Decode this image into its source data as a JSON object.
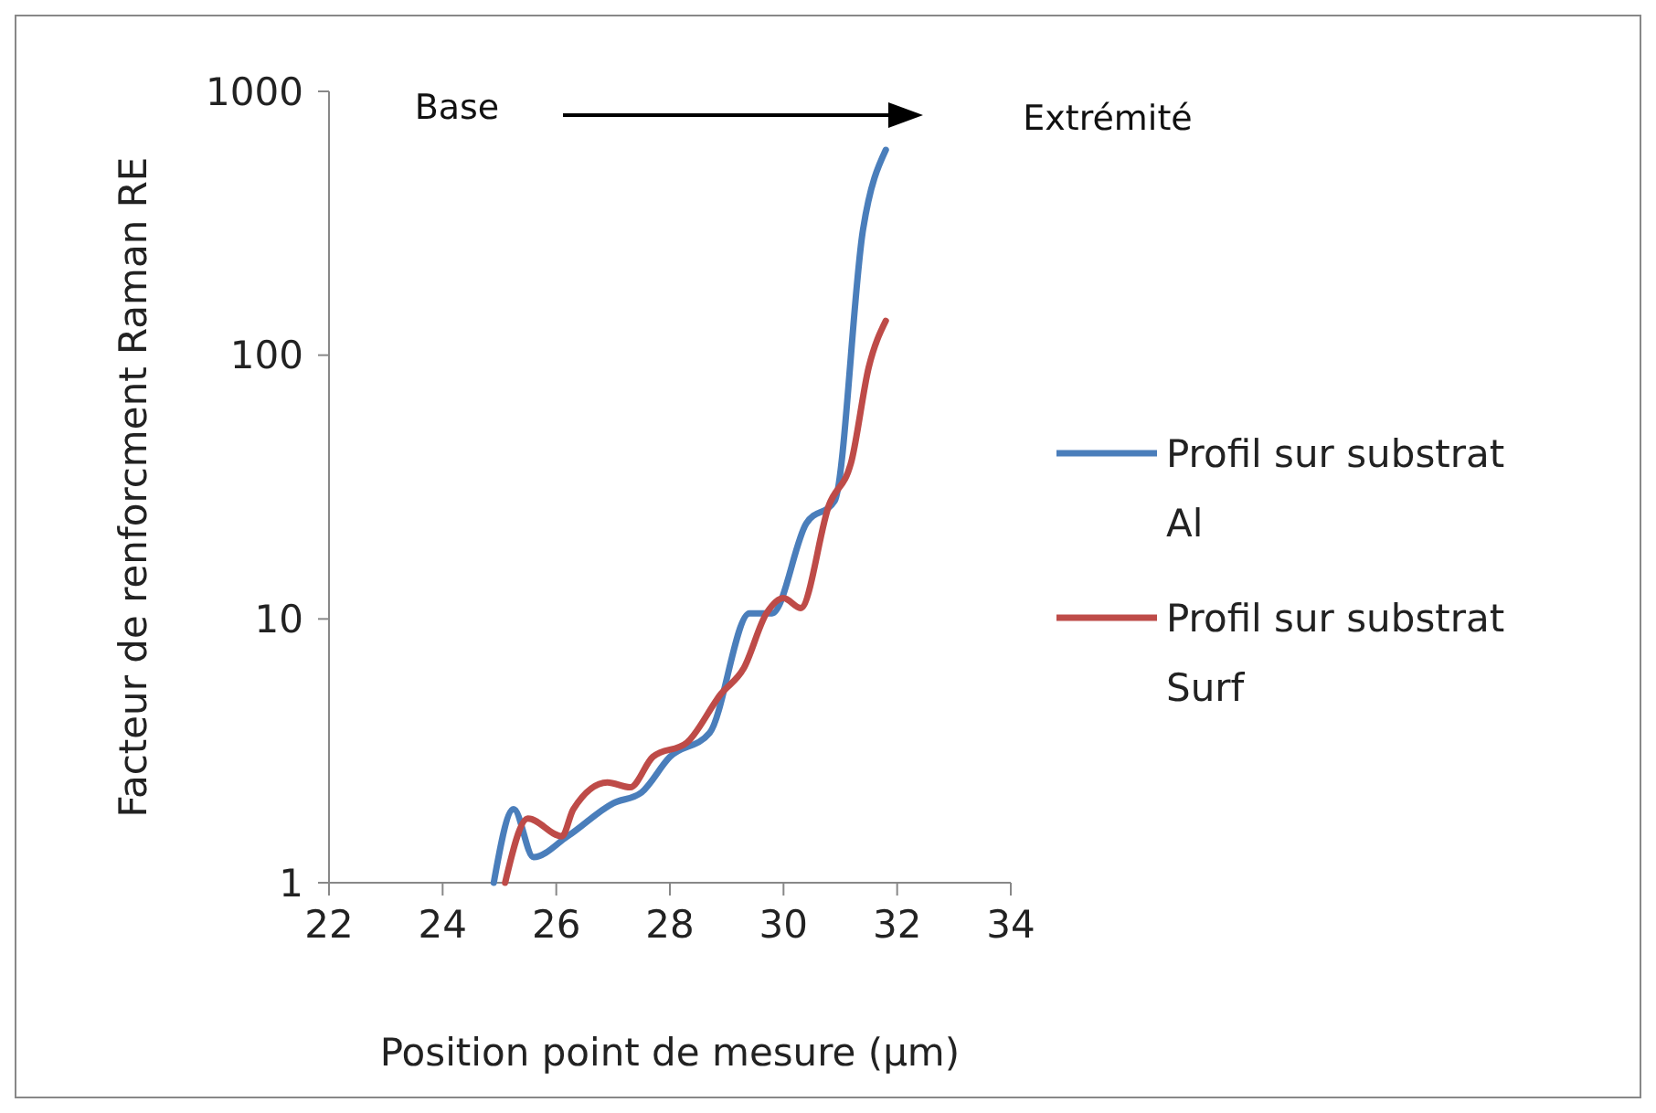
{
  "chart_data": {
    "type": "line",
    "xlabel": "Position point de mesure (µm)",
    "ylabel": "Facteur de renforcment Raman RE",
    "log": true,
    "xlim": [
      22,
      34
    ],
    "xticks": [
      22,
      24,
      26,
      28,
      30,
      32,
      34
    ],
    "ylim": [
      1,
      1000
    ],
    "yticks": [
      1,
      10,
      100,
      1000
    ],
    "legend": "right",
    "grid": false,
    "annotations": [
      "Base",
      "Extrémité"
    ],
    "series": [
      {
        "name": "Profil sur substrat Al",
        "color": "#4a7ebb",
        "x": [
          24.9,
          25.25,
          25.6,
          26.2,
          27,
          27.5,
          28,
          28.7,
          29.4,
          29.8,
          30.4,
          30.9,
          31.4,
          31.8
        ],
        "values": [
          1,
          1.9,
          1.25,
          1.5,
          2,
          2.2,
          3,
          3.7,
          10.5,
          10.5,
          23,
          28,
          300,
          600
        ]
      },
      {
        "name": "Profil sur substrat Surf",
        "color": "#be4b48",
        "x": [
          25.1,
          25.5,
          26.1,
          26.3,
          26.9,
          27.3,
          27.7,
          28.3,
          28.9,
          29.3,
          29.7,
          30,
          30.3,
          30.8,
          31.2,
          31.5,
          31.8
        ],
        "values": [
          1,
          1.75,
          1.5,
          1.9,
          2.4,
          2.3,
          3,
          3.4,
          5.2,
          6.5,
          10.5,
          12,
          11,
          27,
          40,
          90,
          135
        ]
      }
    ]
  }
}
